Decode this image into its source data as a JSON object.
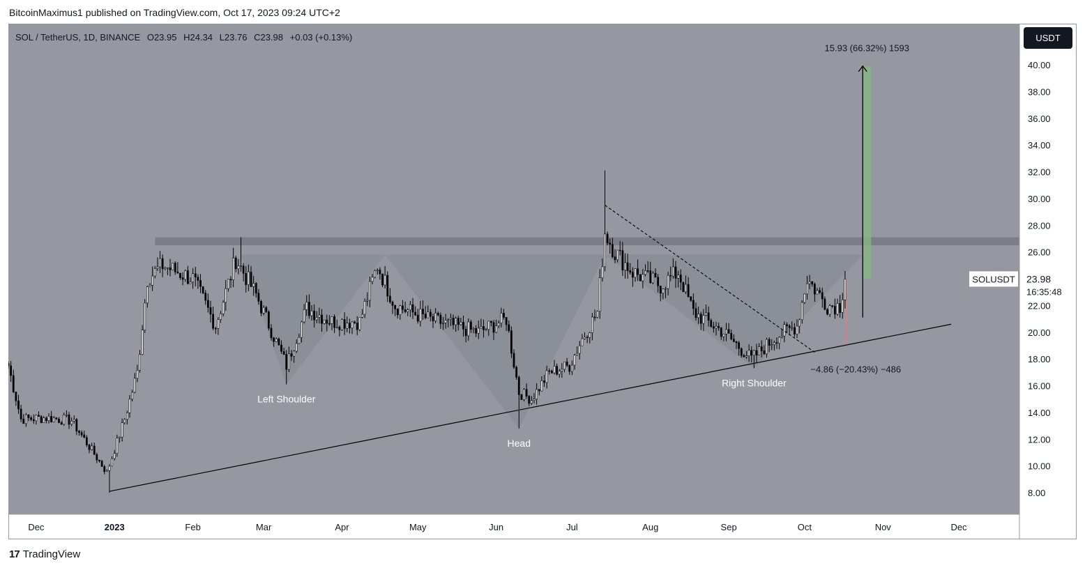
{
  "header": {
    "publisher_line": "BitcoinMaximus1 published on TradingView.com, Oct 17, 2023 09:24 UTC+2"
  },
  "footer": {
    "logo_text": "TradingView",
    "logo_icon": "tradingview-logo-icon"
  },
  "legend": {
    "symbol": "SOL / TetherUS, 1D, BINANCE",
    "o_label": "O",
    "o_value": "23.95",
    "h_label": "H",
    "h_value": "24.34",
    "l_label": "L",
    "l_value": "23.76",
    "c_label": "C",
    "c_value": "23.98",
    "change": "+0.03 (+0.13%)"
  },
  "price_axis": {
    "currency_button": "USDT",
    "symbol_tag": "SOLUSDT",
    "last_price": "23.98",
    "countdown": "16:35:48"
  },
  "colors": {
    "chart_bg": "#9598a1",
    "candle_up": "#ffffff",
    "candle_down": "#000000",
    "target_green": "#84ba82",
    "stop_red": "#c9868a",
    "resistance_band": "#787b86",
    "pattern_fill": "#8a8d96"
  },
  "chart_data": {
    "type": "candlestick",
    "symbol": "SOL / TetherUS",
    "interval": "1D",
    "exchange": "BINANCE",
    "ylim": [
      7,
      42
    ],
    "y_ticks": [
      "8.00",
      "10.00",
      "12.00",
      "14.00",
      "16.00",
      "18.00",
      "20.00",
      "22.00",
      "24.00",
      "26.00",
      "28.00",
      "30.00",
      "32.00",
      "34.00",
      "36.00",
      "38.00",
      "40.00"
    ],
    "x_ticks": [
      "Dec",
      "2023",
      "Feb",
      "Mar",
      "Apr",
      "May",
      "Jun",
      "Jul",
      "Aug",
      "Sep",
      "Oct",
      "Nov",
      "Dec"
    ],
    "x_range": [
      "2022-11-20",
      "2023-12-25"
    ],
    "anchors": [
      {
        "date": "2022-11-20",
        "price": 17.5
      },
      {
        "date": "2022-11-25",
        "price": 13.5
      },
      {
        "date": "2022-12-05",
        "price": 13.6
      },
      {
        "date": "2022-12-15",
        "price": 13.4
      },
      {
        "date": "2022-12-20",
        "price": 12.0
      },
      {
        "date": "2022-12-29",
        "price": 9.5
      },
      {
        "date": "2023-01-05",
        "price": 13.5
      },
      {
        "date": "2023-01-10",
        "price": 17.0
      },
      {
        "date": "2023-01-14",
        "price": 24.0
      },
      {
        "date": "2023-01-20",
        "price": 25.0
      },
      {
        "date": "2023-02-01",
        "price": 24.0
      },
      {
        "date": "2023-02-10",
        "price": 20.5
      },
      {
        "date": "2023-02-18",
        "price": 25.5
      },
      {
        "date": "2023-02-26",
        "price": 22.8
      },
      {
        "date": "2023-03-10",
        "price": 17.5
      },
      {
        "date": "2023-03-18",
        "price": 21.8
      },
      {
        "date": "2023-03-28",
        "price": 20.8
      },
      {
        "date": "2023-04-08",
        "price": 20.8
      },
      {
        "date": "2023-04-15",
        "price": 25.0
      },
      {
        "date": "2023-04-22",
        "price": 22.0
      },
      {
        "date": "2023-05-05",
        "price": 21.0
      },
      {
        "date": "2023-05-25",
        "price": 20.0
      },
      {
        "date": "2023-06-05",
        "price": 21.0
      },
      {
        "date": "2023-06-10",
        "price": 15.5
      },
      {
        "date": "2023-06-15",
        "price": 15.0
      },
      {
        "date": "2023-06-22",
        "price": 17.0
      },
      {
        "date": "2023-06-30",
        "price": 17.5
      },
      {
        "date": "2023-07-05",
        "price": 19.5
      },
      {
        "date": "2023-07-11",
        "price": 21.5
      },
      {
        "date": "2023-07-14",
        "price": 27.5
      },
      {
        "date": "2023-07-18",
        "price": 26.0
      },
      {
        "date": "2023-07-25",
        "price": 24.5
      },
      {
        "date": "2023-08-05",
        "price": 23.5
      },
      {
        "date": "2023-08-12",
        "price": 24.5
      },
      {
        "date": "2023-08-18",
        "price": 21.5
      },
      {
        "date": "2023-08-30",
        "price": 20.0
      },
      {
        "date": "2023-09-10",
        "price": 18.0
      },
      {
        "date": "2023-09-20",
        "price": 19.7
      },
      {
        "date": "2023-09-28",
        "price": 20.5
      },
      {
        "date": "2023-10-02",
        "price": 24.0
      },
      {
        "date": "2023-10-10",
        "price": 22.0
      },
      {
        "date": "2023-10-15",
        "price": 22.0
      },
      {
        "date": "2023-10-17",
        "price": 23.98
      }
    ],
    "highs_lows": [
      {
        "date": "2022-12-30",
        "low": 8.0
      },
      {
        "date": "2023-02-20",
        "high": 27.1
      },
      {
        "date": "2023-03-10",
        "low": 16.1
      },
      {
        "date": "2023-06-10",
        "low": 12.8
      },
      {
        "date": "2023-07-14",
        "high": 32.1
      },
      {
        "date": "2023-09-11",
        "low": 17.3
      }
    ],
    "resistance_zone": {
      "from": 26.5,
      "to": 27.1,
      "start_date": "2023-01-17",
      "end_date": "2023-12-25"
    },
    "neckline": 25.8,
    "ascending_support": {
      "start": {
        "date": "2022-12-30",
        "price": 8.1
      },
      "end": {
        "date": "2023-11-28",
        "price": 20.6
      }
    },
    "descending_trendline": {
      "start": {
        "date": "2023-07-14",
        "price": 29.5
      },
      "end": {
        "date": "2023-10-05",
        "price": 18.5
      }
    },
    "patterns": [
      {
        "label": "Left Shoulder",
        "apex_date": "2023-03-10",
        "apex_price": 16.1
      },
      {
        "label": "Head",
        "apex_date": "2023-06-10",
        "apex_price": 12.8
      },
      {
        "label": "Right Shoulder",
        "apex_date": "2023-09-11",
        "apex_price": 17.3
      }
    ],
    "target": {
      "label": "15.93 (66.32%) 1593",
      "from": 24.0,
      "to": 39.91,
      "arrow_date": "2023-10-24"
    },
    "stop": {
      "label": "−4.86 (−20.43%) −486",
      "from": 23.98,
      "to": 19.12
    }
  }
}
